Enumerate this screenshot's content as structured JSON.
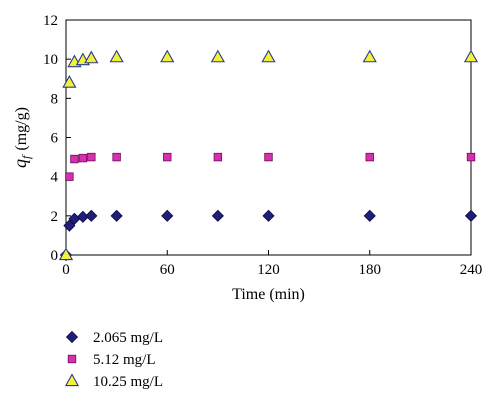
{
  "chart_data": {
    "type": "scatter",
    "xlabel": "Time (min)",
    "ylabel_var": "q",
    "ylabel_sub": "f",
    "ylabel_unit": "(mg/g)",
    "xlim": [
      0,
      240
    ],
    "ylim": [
      0,
      12
    ],
    "xticks": [
      0,
      60,
      120,
      180,
      240
    ],
    "yticks": [
      0,
      2,
      4,
      6,
      8,
      10,
      12
    ],
    "grid": false,
    "legend_position": "bottom-left",
    "series": [
      {
        "name": "2.065 mg/L",
        "marker": "diamond",
        "color": "#1f1f7a",
        "x": [
          0,
          2,
          5,
          10,
          15,
          30,
          60,
          90,
          120,
          180,
          240
        ],
        "y": [
          0,
          1.5,
          1.85,
          1.95,
          2.0,
          2.0,
          2.0,
          2.0,
          2.0,
          2.0,
          2.0
        ]
      },
      {
        "name": "5.12 mg/L",
        "marker": "square",
        "color": "#d62fb0",
        "x": [
          2,
          5,
          10,
          15,
          30,
          60,
          90,
          120,
          180,
          240
        ],
        "y": [
          4.0,
          4.9,
          4.95,
          5.0,
          5.0,
          5.0,
          5.0,
          5.0,
          5.0,
          5.0
        ]
      },
      {
        "name": "10.25 mg/L",
        "marker": "triangle",
        "color": "#f2f23a",
        "x": [
          0,
          2,
          5,
          10,
          15,
          30,
          60,
          90,
          120,
          180,
          240
        ],
        "y": [
          0,
          8.8,
          9.85,
          9.95,
          10.05,
          10.1,
          10.1,
          10.1,
          10.1,
          10.1,
          10.1
        ]
      }
    ]
  }
}
